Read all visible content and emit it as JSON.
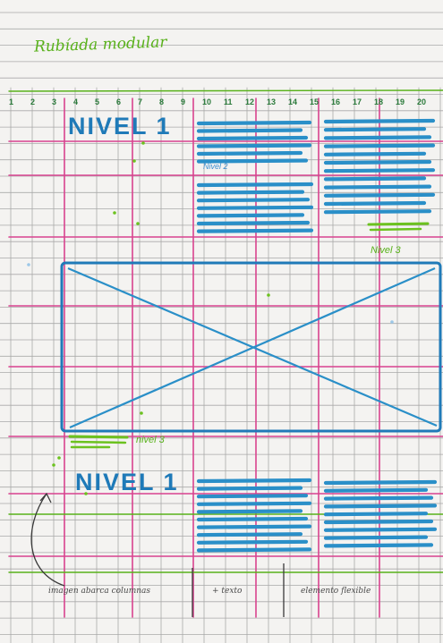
{
  "title": "Rubíada modular",
  "column_numbers": [
    "1",
    "2",
    "3",
    "4",
    "5",
    "6",
    "7",
    "8",
    "9",
    "10",
    "11",
    "12",
    "13",
    "14",
    "15",
    "16",
    "17",
    "18",
    "19",
    "20"
  ],
  "labels": {
    "nivel1_top": "NIVEL 1",
    "nivel1_bottom": "NIVEL 1",
    "nivel2": "Nivel 2",
    "nivel3_right": "Nivel 3",
    "nivel3_left": "nivel 3"
  },
  "footer": {
    "left": "imagen abarca columnas",
    "middle": "+ texto",
    "right": "elemento flexible"
  },
  "colors": {
    "paper": "#f4f3f1",
    "grid": "#a9a9a9",
    "magenta": "#d8438f",
    "green": "#58b11a",
    "blue": "#1f7ab8",
    "text_block": "#2a8fc8"
  }
}
